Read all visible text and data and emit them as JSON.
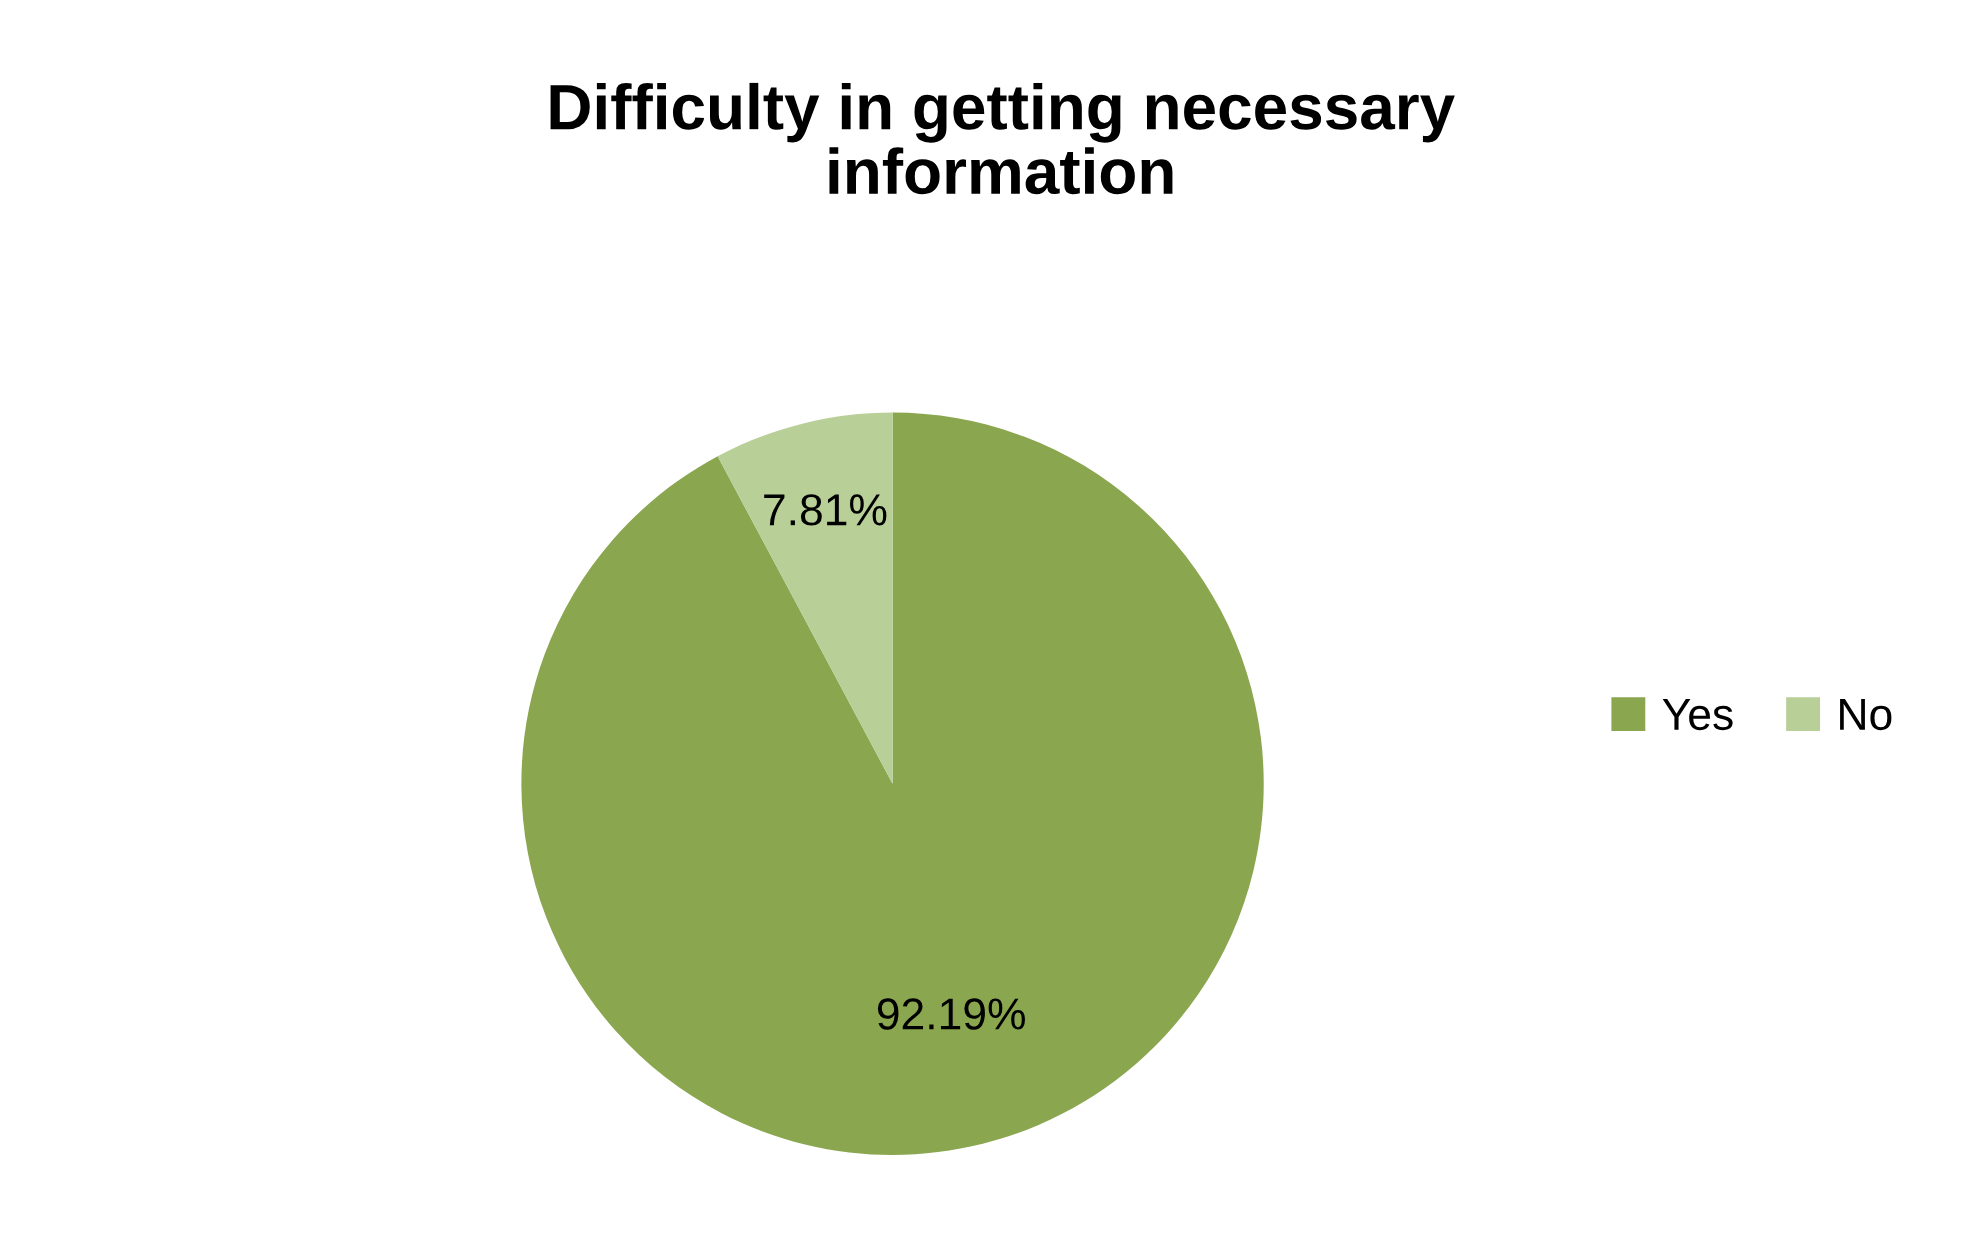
{
  "chart_data": {
    "type": "pie",
    "title": "Difficulty in getting necessary\ninformation",
    "categories": [
      "Yes",
      "No"
    ],
    "values": [
      92.19,
      7.81
    ],
    "colors": [
      "#8aa64f",
      "#b8cf98"
    ],
    "value_labels": [
      "92.19%",
      "7.81%"
    ],
    "legend": "right"
  }
}
